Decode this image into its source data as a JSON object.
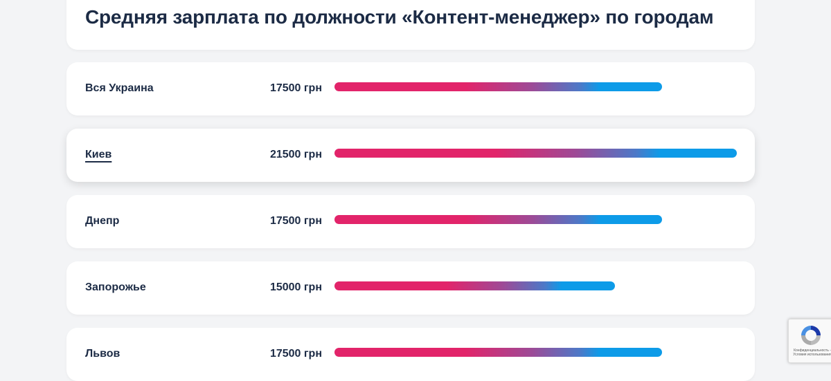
{
  "header": {
    "title": "Средняя зарплата по должности «Контент-менеджер» по городам"
  },
  "rows": [
    {
      "city": "Вся Украина",
      "salary": "17500 грн",
      "value": 17500,
      "is_link": false
    },
    {
      "city": "Киев",
      "salary": "21500 грн",
      "value": 21500,
      "is_link": true
    },
    {
      "city": "Днепр",
      "salary": "17500 грн",
      "value": 17500,
      "is_link": false
    },
    {
      "city": "Запорожье",
      "salary": "15000 грн",
      "value": 15000,
      "is_link": false
    },
    {
      "city": "Львов",
      "salary": "17500 грн",
      "value": 17500,
      "is_link": false
    }
  ],
  "recaptcha": {
    "text": "Конфиденциальность - Условия использования"
  },
  "colors": {
    "bar_start": "#e2246a",
    "bar_end": "#0d9be8",
    "text": "#1c2b45",
    "background": "#f3f4f6"
  },
  "chart_data": {
    "type": "bar",
    "orientation": "horizontal",
    "title": "Средняя зарплата по должности «Контент-менеджер» по городам",
    "categories": [
      "Вся Украина",
      "Киев",
      "Днепр",
      "Запорожье",
      "Львов"
    ],
    "values": [
      17500,
      21500,
      17500,
      15000,
      17500
    ],
    "value_labels": [
      "17500 грн",
      "21500 грн",
      "17500 грн",
      "15000 грн",
      "17500 грн"
    ],
    "unit": "грн",
    "xlabel": "",
    "ylabel": "",
    "grid": false,
    "legend": null
  }
}
